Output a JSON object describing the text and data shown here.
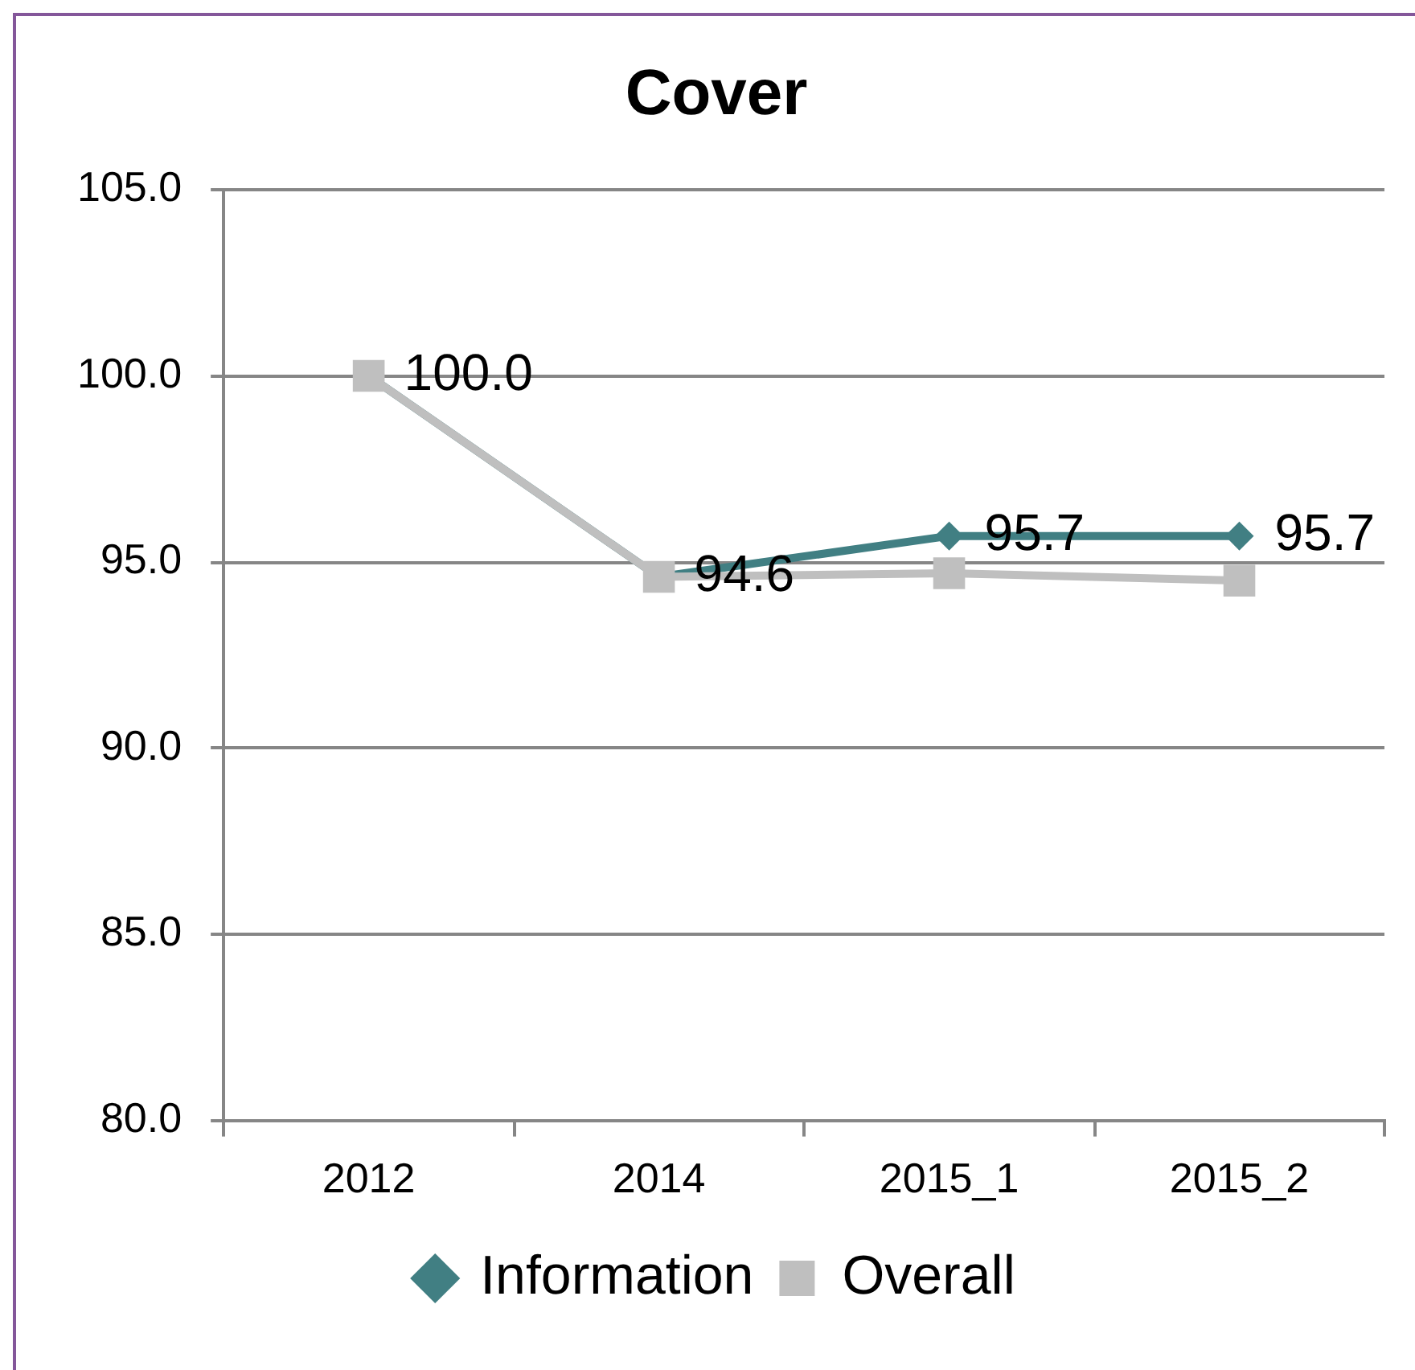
{
  "chart_data": {
    "type": "line",
    "title": "Cover",
    "categories": [
      "2012",
      "2014",
      "2015_1",
      "2015_2"
    ],
    "series": [
      {
        "name": "Information",
        "color": "#417f83",
        "marker": "diamond",
        "values": [
          100.0,
          94.6,
          95.7,
          95.7
        ],
        "value_labels": [
          "100.0",
          "94.6",
          "95.7",
          "95.7"
        ]
      },
      {
        "name": "Overall",
        "color": "#bfbfbf",
        "marker": "square",
        "values": [
          100.0,
          94.6,
          94.7,
          94.5
        ]
      }
    ],
    "ylim": [
      80,
      105
    ],
    "yticks": [
      {
        "value": 80,
        "label": "80.0"
      },
      {
        "value": 85,
        "label": "85.0"
      },
      {
        "value": 90,
        "label": "90.0"
      },
      {
        "value": 95,
        "label": "95.0"
      },
      {
        "value": 100,
        "label": "100.0"
      },
      {
        "value": 105,
        "label": "105.0"
      }
    ],
    "grid": "y",
    "legend": "bottom"
  }
}
